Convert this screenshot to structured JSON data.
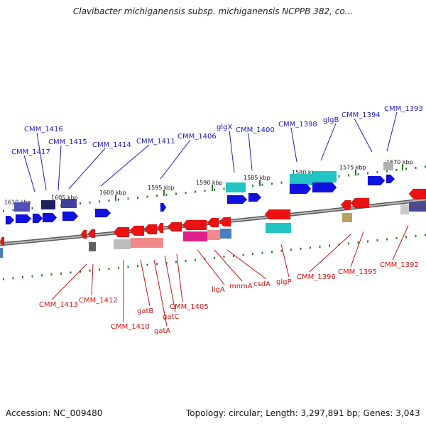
{
  "title": "Clavibacter michiganensis subsp. michiganensis NCPPB 382, co...",
  "accession": "Accession: NC_009480",
  "topology": "Topology: circular; Length: 3,297,891 bp; Genes: 3,043",
  "colors": {
    "forward_gene": "#1010e0",
    "reverse_gene": "#ee1111",
    "forward_label": "#1a1acc",
    "reverse_label": "#cc1111",
    "backbone": "#808080",
    "tick": "#2a7a2a",
    "cyan_feature": "#22c4c4",
    "magenta_feature": "#e0208a"
  },
  "kbp_ticks": [
    "1610 kbp",
    "1605 kbp",
    "1600 kbp",
    "1595 kbp",
    "1590 kbp",
    "1585 kbp",
    "1580 kbp",
    "1575 kbp",
    "1570 kbp"
  ],
  "forward_labels": [
    "CMM_1417",
    "CMM_1416",
    "CMM_1415",
    "CMM_1414",
    "CMM_1411",
    "CMM_1406",
    "glgX",
    "CMM_1400",
    "CMM_1398",
    "glgB",
    "CMM_1394",
    "CMM_1393"
  ],
  "reverse_labels": [
    "CMM_1413",
    "CMM_1412",
    "CMM_1410",
    "gatB",
    "gatA",
    "gatC",
    "CMM_1405",
    "ligA",
    "mnmA",
    "csdA",
    "glgP",
    "CMM_1396",
    "CMM_1395",
    "CMM_1392"
  ]
}
